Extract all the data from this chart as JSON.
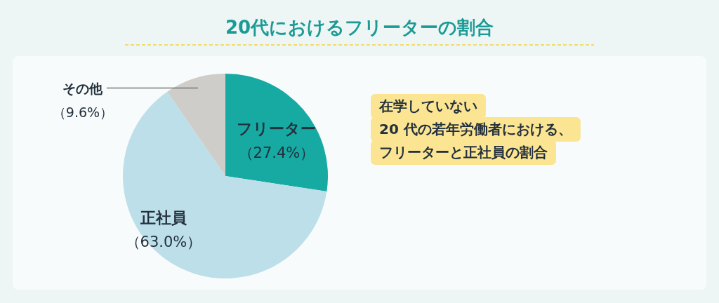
{
  "chart_data": {
    "type": "pie",
    "title": "20代におけるフリーターの割合",
    "categories": [
      "フリーター",
      "正社員",
      "その他"
    ],
    "values": [
      27.4,
      63.0,
      9.6
    ],
    "colors": [
      "#16aaa3",
      "#bddfe9",
      "#cfcdc9"
    ],
    "value_labels": [
      "（27.4%）",
      "（63.0%）",
      "（9.6%）"
    ],
    "annotations": [
      "在学していない",
      "20 代の若年労働者における、",
      "フリーターと正社員の割合"
    ]
  }
}
